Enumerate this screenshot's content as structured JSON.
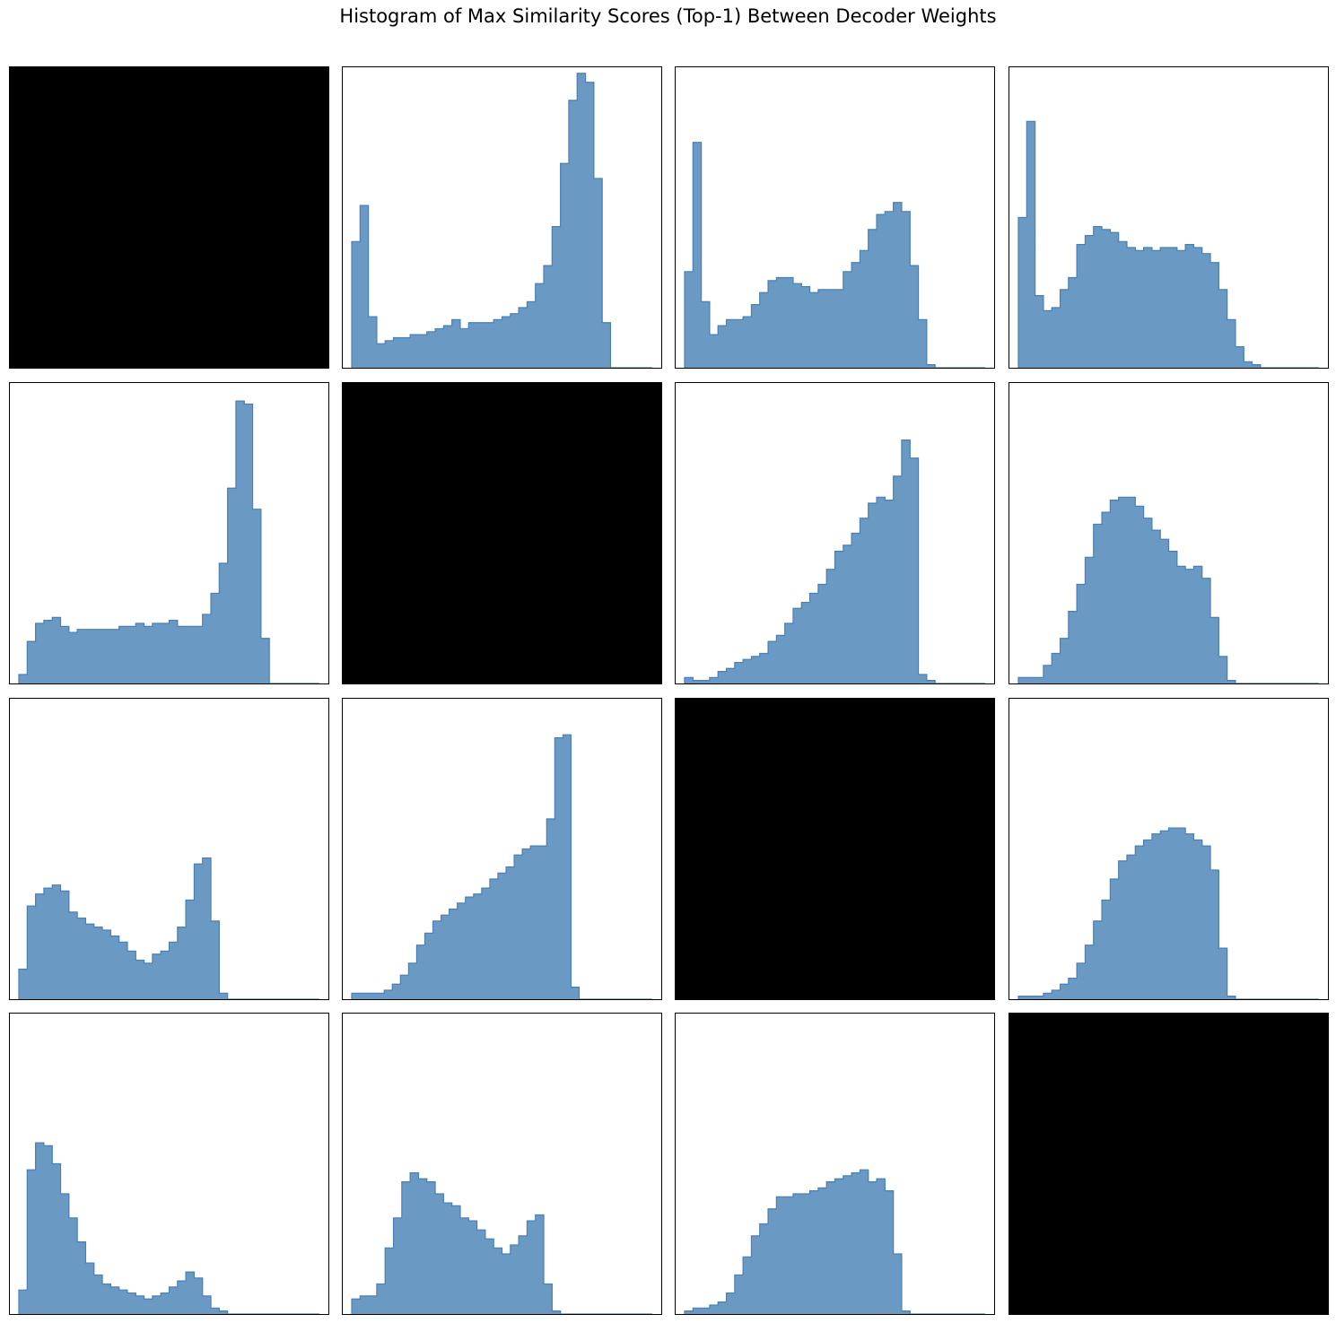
{
  "title": "Histogram of Max Similarity Scores (Top-1) Between Decoder Weights",
  "colors": {
    "bar_fill": "#6a9ac4",
    "bar_edge": "#4a7fb5",
    "diagonal": "#000000",
    "frame": "#000000"
  },
  "chart_data": [
    {
      "type": "heatmap",
      "row": 0,
      "col": 0,
      "fill": "black",
      "values": []
    },
    {
      "type": "bar",
      "row": 0,
      "col": 1,
      "values": [
        0.42,
        0.54,
        0.17,
        0.08,
        0.09,
        0.1,
        0.1,
        0.11,
        0.11,
        0.12,
        0.13,
        0.14,
        0.16,
        0.13,
        0.15,
        0.15,
        0.15,
        0.16,
        0.17,
        0.18,
        0.2,
        0.22,
        0.28,
        0.34,
        0.47,
        0.68,
        0.89,
        0.98,
        0.95,
        0.63,
        0.15,
        0,
        0,
        0,
        0,
        0
      ]
    },
    {
      "type": "bar",
      "row": 0,
      "col": 2,
      "values": [
        0.32,
        0.75,
        0.22,
        0.11,
        0.14,
        0.16,
        0.16,
        0.17,
        0.21,
        0.25,
        0.29,
        0.3,
        0.3,
        0.28,
        0.27,
        0.25,
        0.26,
        0.26,
        0.26,
        0.32,
        0.35,
        0.39,
        0.46,
        0.51,
        0.52,
        0.55,
        0.52,
        0.34,
        0.16,
        0.01,
        0,
        0,
        0,
        0,
        0,
        0
      ]
    },
    {
      "type": "bar",
      "row": 0,
      "col": 3,
      "values": [
        0.5,
        0.82,
        0.24,
        0.19,
        0.2,
        0.26,
        0.3,
        0.41,
        0.44,
        0.47,
        0.46,
        0.45,
        0.42,
        0.4,
        0.39,
        0.4,
        0.39,
        0.4,
        0.4,
        0.39,
        0.41,
        0.4,
        0.38,
        0.35,
        0.26,
        0.16,
        0.07,
        0.02,
        0.01,
        0,
        0,
        0,
        0,
        0,
        0,
        0
      ]
    },
    {
      "type": "bar",
      "row": 1,
      "col": 0,
      "values": [
        0.03,
        0.14,
        0.2,
        0.21,
        0.22,
        0.19,
        0.17,
        0.18,
        0.18,
        0.18,
        0.18,
        0.18,
        0.19,
        0.19,
        0.2,
        0.19,
        0.2,
        0.2,
        0.21,
        0.19,
        0.19,
        0.19,
        0.23,
        0.3,
        0.4,
        0.65,
        0.94,
        0.93,
        0.58,
        0.15,
        0,
        0,
        0,
        0,
        0,
        0
      ]
    },
    {
      "type": "heatmap",
      "row": 1,
      "col": 1,
      "fill": "black",
      "values": []
    },
    {
      "type": "bar",
      "row": 1,
      "col": 2,
      "values": [
        0.02,
        0.01,
        0.01,
        0.02,
        0.04,
        0.05,
        0.07,
        0.08,
        0.09,
        0.1,
        0.14,
        0.16,
        0.2,
        0.25,
        0.27,
        0.3,
        0.33,
        0.38,
        0.44,
        0.46,
        0.5,
        0.55,
        0.6,
        0.62,
        0.61,
        0.69,
        0.81,
        0.75,
        0.03,
        0.01,
        0,
        0,
        0,
        0,
        0,
        0
      ]
    },
    {
      "type": "bar",
      "row": 1,
      "col": 3,
      "values": [
        0.02,
        0.02,
        0.02,
        0.06,
        0.1,
        0.15,
        0.24,
        0.33,
        0.42,
        0.53,
        0.57,
        0.61,
        0.62,
        0.62,
        0.59,
        0.55,
        0.51,
        0.48,
        0.44,
        0.39,
        0.38,
        0.39,
        0.35,
        0.22,
        0.09,
        0.01,
        0,
        0,
        0,
        0,
        0,
        0,
        0,
        0,
        0,
        0
      ]
    },
    {
      "type": "bar",
      "row": 2,
      "col": 0,
      "values": [
        0.1,
        0.31,
        0.35,
        0.37,
        0.38,
        0.36,
        0.29,
        0.27,
        0.25,
        0.24,
        0.23,
        0.21,
        0.19,
        0.16,
        0.13,
        0.12,
        0.15,
        0.16,
        0.19,
        0.24,
        0.33,
        0.45,
        0.47,
        0.26,
        0.02,
        0,
        0,
        0,
        0,
        0,
        0,
        0,
        0,
        0,
        0,
        0
      ]
    },
    {
      "type": "bar",
      "row": 2,
      "col": 1,
      "values": [
        0.02,
        0.02,
        0.02,
        0.02,
        0.03,
        0.05,
        0.08,
        0.12,
        0.18,
        0.22,
        0.26,
        0.28,
        0.3,
        0.32,
        0.34,
        0.35,
        0.37,
        0.4,
        0.42,
        0.44,
        0.48,
        0.5,
        0.51,
        0.51,
        0.6,
        0.87,
        0.88,
        0.04,
        0,
        0,
        0,
        0,
        0,
        0,
        0,
        0,
        0
      ]
    },
    {
      "type": "heatmap",
      "row": 2,
      "col": 2,
      "fill": "black",
      "values": []
    },
    {
      "type": "bar",
      "row": 2,
      "col": 3,
      "values": [
        0.01,
        0.01,
        0.01,
        0.02,
        0.03,
        0.05,
        0.07,
        0.12,
        0.18,
        0.26,
        0.33,
        0.4,
        0.46,
        0.48,
        0.51,
        0.53,
        0.55,
        0.56,
        0.57,
        0.57,
        0.55,
        0.53,
        0.51,
        0.43,
        0.17,
        0.01,
        0,
        0,
        0,
        0,
        0,
        0,
        0,
        0,
        0,
        0
      ]
    },
    {
      "type": "bar",
      "row": 3,
      "col": 0,
      "values": [
        0.08,
        0.48,
        0.57,
        0.56,
        0.5,
        0.4,
        0.32,
        0.24,
        0.17,
        0.13,
        0.1,
        0.09,
        0.08,
        0.07,
        0.06,
        0.05,
        0.06,
        0.07,
        0.09,
        0.11,
        0.14,
        0.12,
        0.06,
        0.02,
        0.01,
        0,
        0,
        0,
        0,
        0,
        0,
        0,
        0,
        0,
        0,
        0
      ]
    },
    {
      "type": "bar",
      "row": 3,
      "col": 1,
      "values": [
        0.05,
        0.06,
        0.06,
        0.1,
        0.22,
        0.32,
        0.44,
        0.47,
        0.45,
        0.44,
        0.4,
        0.37,
        0.36,
        0.32,
        0.31,
        0.28,
        0.25,
        0.22,
        0.2,
        0.23,
        0.26,
        0.31,
        0.33,
        0.1,
        0.01,
        0,
        0,
        0,
        0,
        0,
        0,
        0,
        0,
        0,
        0,
        0
      ]
    },
    {
      "type": "bar",
      "row": 3,
      "col": 2,
      "values": [
        0.01,
        0.02,
        0.02,
        0.03,
        0.04,
        0.07,
        0.13,
        0.19,
        0.26,
        0.3,
        0.35,
        0.39,
        0.39,
        0.4,
        0.4,
        0.41,
        0.42,
        0.44,
        0.45,
        0.46,
        0.47,
        0.48,
        0.44,
        0.45,
        0.41,
        0.2,
        0.01,
        0,
        0,
        0,
        0,
        0,
        0,
        0,
        0,
        0
      ]
    },
    {
      "type": "heatmap",
      "row": 3,
      "col": 3,
      "fill": "black",
      "values": []
    }
  ]
}
